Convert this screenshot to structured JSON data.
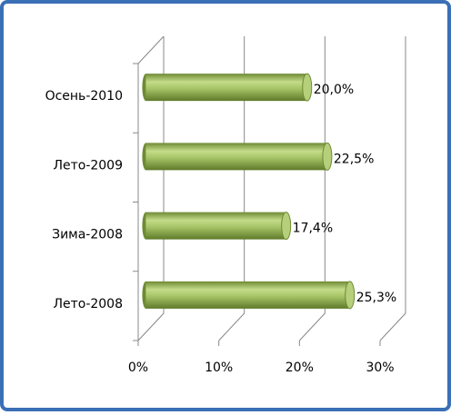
{
  "chart_data": {
    "type": "bar",
    "orientation": "horizontal",
    "categories": [
      "Лето-2008",
      "Зима-2008",
      "Лето-2009",
      "Осень-2010"
    ],
    "values": [
      25.3,
      17.4,
      22.5,
      20.0
    ],
    "value_labels": [
      "25,3%",
      "17,4%",
      "22,5%",
      "20,0%"
    ],
    "color": "#9bbb59",
    "xlim": [
      0,
      30
    ],
    "xticks": [
      {
        "value": 0,
        "label": "0%"
      },
      {
        "value": 10,
        "label": "10%"
      },
      {
        "value": 20,
        "label": "20%"
      },
      {
        "value": 30,
        "label": "30%"
      }
    ],
    "grid": true
  }
}
